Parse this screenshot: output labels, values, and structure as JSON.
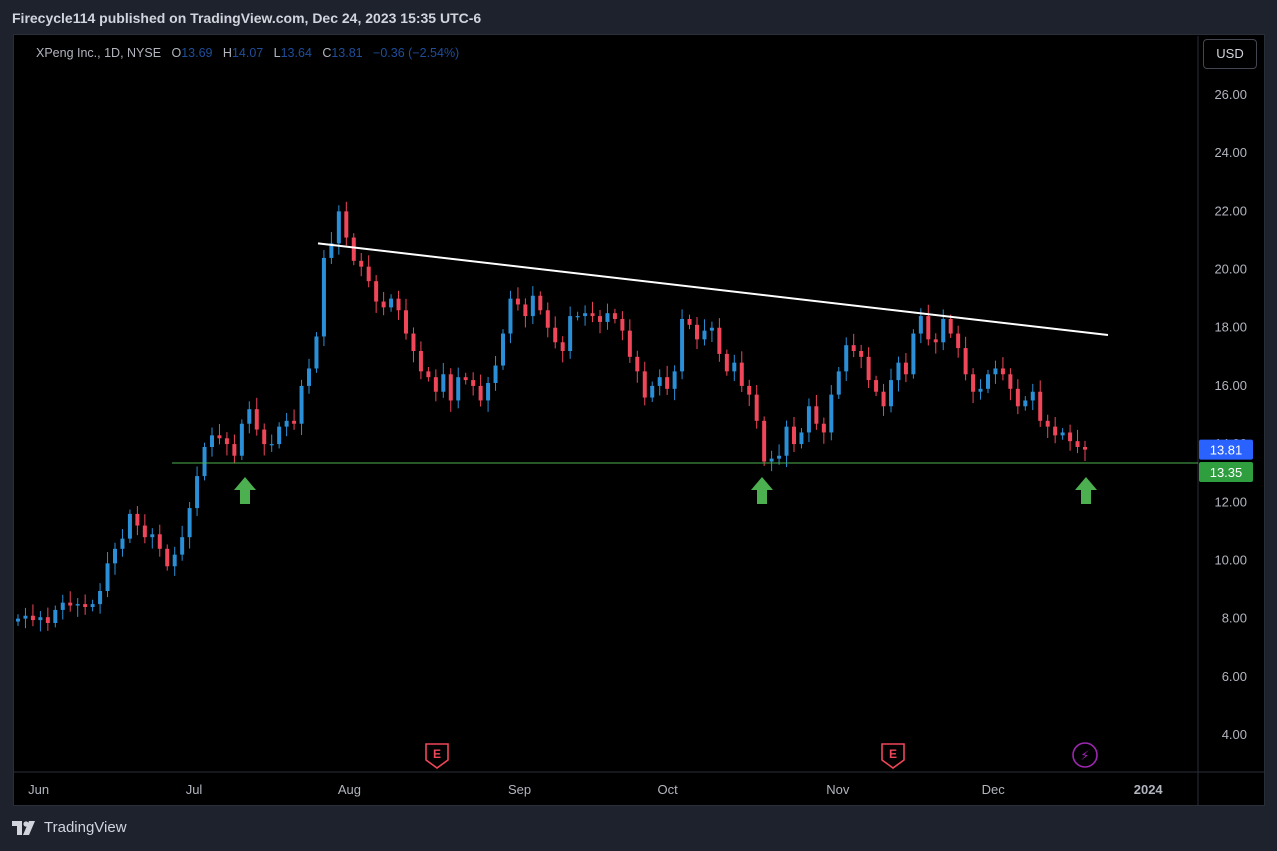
{
  "header": {
    "text": "Firecycle114 published on TradingView.com, Dec 24, 2023 15:35 UTC-6"
  },
  "legend": {
    "symbol": "XPeng Inc., 1D, NYSE",
    "o_label": "O",
    "o_value": "13.69",
    "h_label": "H",
    "h_value": "14.07",
    "l_label": "L",
    "l_value": "13.64",
    "c_label": "C",
    "c_value": "13.81",
    "change": "−0.36 (−2.54%)"
  },
  "currency_button": "USD",
  "footer": {
    "brand": "TradingView",
    "logo_icon": "tradingview-logo-icon"
  },
  "colors": {
    "up": "#2a8fd6",
    "down": "#f0465a",
    "trendline": "#ffffff",
    "support": "#4caf50",
    "arrow": "#4caf50",
    "last_price": "#2962ff",
    "support_tag": "#2e9e3e",
    "earnings": "#f0465a",
    "dividend": "#9c27b0"
  },
  "chart_data": {
    "type": "candlestick",
    "title": "XPeng Inc., 1D, NYSE",
    "y_ticks": [
      "26.00",
      "24.00",
      "22.00",
      "20.00",
      "18.00",
      "16.00",
      "14.00",
      "12.00",
      "10.00",
      "8.00",
      "6.00",
      "4.00"
    ],
    "y_range": [
      3,
      27
    ],
    "x_ticks": [
      {
        "label": "Jun",
        "day": -21
      },
      {
        "label": "Jul",
        "day": 0
      },
      {
        "label": "Aug",
        "day": 21
      },
      {
        "label": "Sep",
        "day": 44
      },
      {
        "label": "Oct",
        "day": 64
      },
      {
        "label": "Nov",
        "day": 87
      },
      {
        "label": "Dec",
        "day": 108
      },
      {
        "label": "2024",
        "day": 128
      }
    ],
    "x_range": [
      -24,
      140
    ],
    "last_price": "13.81",
    "support_level": "13.35",
    "support_value": 13.35,
    "trendline": {
      "from": {
        "day": 19,
        "price": 20.9
      },
      "to": {
        "day": 126,
        "price": 17.75
      }
    },
    "up_arrows": [
      7,
      79,
      121
    ],
    "events": [
      {
        "type": "earnings",
        "day": 34,
        "label": "E",
        "icon": "earnings-icon"
      },
      {
        "type": "earnings",
        "day": 101,
        "label": "E",
        "icon": "earnings-icon"
      },
      {
        "type": "dividend",
        "day": 122,
        "label": "⚡",
        "icon": "lightning-icon"
      }
    ],
    "closes": [
      8.0,
      8.1,
      7.95,
      8.05,
      7.85,
      8.3,
      8.55,
      8.45,
      8.5,
      8.4,
      8.5,
      8.95,
      9.9,
      10.4,
      10.75,
      11.6,
      11.2,
      10.8,
      10.9,
      10.4,
      9.8,
      10.2,
      10.8,
      11.8,
      12.9,
      13.9,
      14.3,
      14.2,
      14.0,
      13.6,
      14.7,
      15.2,
      14.5,
      14.0,
      14.0,
      14.6,
      14.8,
      14.7,
      16.0,
      16.6,
      17.7,
      20.4,
      20.9,
      22.0,
      21.1,
      20.3,
      20.1,
      19.6,
      18.9,
      18.7,
      19.0,
      18.6,
      17.8,
      17.2,
      16.5,
      16.3,
      15.8,
      16.4,
      15.5,
      16.3,
      16.2,
      16.0,
      15.5,
      16.1,
      16.7,
      17.8,
      19.0,
      18.8,
      18.4,
      19.1,
      18.6,
      18.0,
      17.5,
      17.2,
      18.4,
      18.4,
      18.5,
      18.4,
      18.2,
      18.5,
      18.3,
      17.9,
      17.0,
      16.5,
      15.6,
      16.0,
      16.3,
      15.9,
      16.5,
      18.3,
      18.1,
      17.6,
      17.9,
      18.0,
      17.1,
      16.5,
      16.8,
      16.0,
      15.7,
      14.8,
      13.4,
      13.5,
      13.6,
      14.6,
      14.0,
      14.4,
      15.3,
      14.7,
      14.4,
      15.7,
      16.5,
      17.4,
      17.2,
      17.0,
      16.2,
      15.8,
      15.3,
      16.2,
      16.8,
      16.4,
      17.8,
      18.4,
      17.6,
      17.5,
      18.3,
      17.8,
      17.3,
      16.4,
      15.8,
      15.9,
      16.4,
      16.6,
      16.4,
      15.9,
      15.3,
      15.5,
      15.8,
      14.8,
      14.6,
      14.3,
      14.4,
      14.1,
      13.9,
      13.81
    ],
    "candles_per_day": 0.9
  }
}
